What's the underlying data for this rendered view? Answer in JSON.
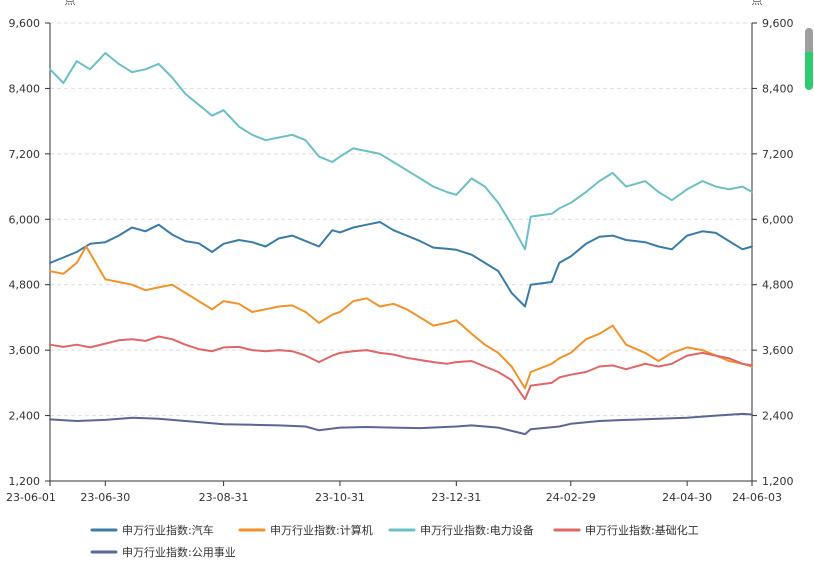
{
  "chart_data": {
    "type": "line",
    "unit_left": "点",
    "unit_right": "点",
    "ylim": [
      1200,
      9600
    ],
    "yticks": [
      1200,
      2400,
      3600,
      4800,
      6000,
      7200,
      8400,
      9600
    ],
    "ytick_labels": [
      "1,200",
      "2,400",
      "3,600",
      "4,800",
      "6,000",
      "7,200",
      "8,400",
      "9,600"
    ],
    "x_start": "2023-06-01",
    "x_end": "2024-06-03",
    "xticks": [
      {
        "date": "2023-06-01",
        "label": "23-06-01"
      },
      {
        "date": "2023-06-30",
        "label": "23-06-30"
      },
      {
        "date": "2023-08-31",
        "label": "23-08-31"
      },
      {
        "date": "2023-10-31",
        "label": "23-10-31"
      },
      {
        "date": "2023-12-31",
        "label": "23-12-31"
      },
      {
        "date": "2024-02-29",
        "label": "24-02-29"
      },
      {
        "date": "2024-04-30",
        "label": "24-04-30"
      },
      {
        "date": "2024-06-03",
        "label": "24-06-03"
      }
    ],
    "grid": "horizontal-dashed",
    "legend_position": "bottom",
    "series": [
      {
        "name": "申万行业指数:汽车",
        "color": "#3a7ca5",
        "points": [
          [
            "2023-06-01",
            5200
          ],
          [
            "2023-06-08",
            5300
          ],
          [
            "2023-06-15",
            5400
          ],
          [
            "2023-06-22",
            5550
          ],
          [
            "2023-06-30",
            5580
          ],
          [
            "2023-07-07",
            5700
          ],
          [
            "2023-07-14",
            5850
          ],
          [
            "2023-07-21",
            5780
          ],
          [
            "2023-07-28",
            5900
          ],
          [
            "2023-08-04",
            5720
          ],
          [
            "2023-08-11",
            5600
          ],
          [
            "2023-08-18",
            5560
          ],
          [
            "2023-08-25",
            5400
          ],
          [
            "2023-08-31",
            5550
          ],
          [
            "2023-09-08",
            5620
          ],
          [
            "2023-09-15",
            5580
          ],
          [
            "2023-09-22",
            5500
          ],
          [
            "2023-09-29",
            5650
          ],
          [
            "2023-10-06",
            5700
          ],
          [
            "2023-10-13",
            5600
          ],
          [
            "2023-10-20",
            5500
          ],
          [
            "2023-10-27",
            5800
          ],
          [
            "2023-10-31",
            5760
          ],
          [
            "2023-11-07",
            5850
          ],
          [
            "2023-11-14",
            5900
          ],
          [
            "2023-11-21",
            5950
          ],
          [
            "2023-11-28",
            5800
          ],
          [
            "2023-12-05",
            5700
          ],
          [
            "2023-12-12",
            5600
          ],
          [
            "2023-12-19",
            5480
          ],
          [
            "2023-12-26",
            5460
          ],
          [
            "2023-12-31",
            5440
          ],
          [
            "2024-01-08",
            5350
          ],
          [
            "2024-01-15",
            5200
          ],
          [
            "2024-01-22",
            5050
          ],
          [
            "2024-01-29",
            4650
          ],
          [
            "2024-02-05",
            4400
          ],
          [
            "2024-02-08",
            4800
          ],
          [
            "2024-02-19",
            4850
          ],
          [
            "2024-02-23",
            5200
          ],
          [
            "2024-02-29",
            5320
          ],
          [
            "2024-03-08",
            5550
          ],
          [
            "2024-03-15",
            5680
          ],
          [
            "2024-03-22",
            5700
          ],
          [
            "2024-03-29",
            5620
          ],
          [
            "2024-04-08",
            5580
          ],
          [
            "2024-04-15",
            5500
          ],
          [
            "2024-04-22",
            5450
          ],
          [
            "2024-04-30",
            5700
          ],
          [
            "2024-05-08",
            5780
          ],
          [
            "2024-05-15",
            5750
          ],
          [
            "2024-05-22",
            5600
          ],
          [
            "2024-05-29",
            5450
          ],
          [
            "2024-06-03",
            5500
          ]
        ]
      },
      {
        "name": "申万行业指数:计算机",
        "color": "#f0932b",
        "points": [
          [
            "2023-06-01",
            5050
          ],
          [
            "2023-06-08",
            5000
          ],
          [
            "2023-06-15",
            5200
          ],
          [
            "2023-06-20",
            5500
          ],
          [
            "2023-06-30",
            4900
          ],
          [
            "2023-07-07",
            4850
          ],
          [
            "2023-07-14",
            4800
          ],
          [
            "2023-07-21",
            4700
          ],
          [
            "2023-07-28",
            4750
          ],
          [
            "2023-08-04",
            4800
          ],
          [
            "2023-08-11",
            4650
          ],
          [
            "2023-08-18",
            4500
          ],
          [
            "2023-08-25",
            4350
          ],
          [
            "2023-08-31",
            4500
          ],
          [
            "2023-09-08",
            4450
          ],
          [
            "2023-09-15",
            4300
          ],
          [
            "2023-09-22",
            4350
          ],
          [
            "2023-09-29",
            4400
          ],
          [
            "2023-10-06",
            4420
          ],
          [
            "2023-10-13",
            4300
          ],
          [
            "2023-10-20",
            4100
          ],
          [
            "2023-10-27",
            4250
          ],
          [
            "2023-10-31",
            4300
          ],
          [
            "2023-11-07",
            4500
          ],
          [
            "2023-11-14",
            4550
          ],
          [
            "2023-11-21",
            4400
          ],
          [
            "2023-11-28",
            4450
          ],
          [
            "2023-12-05",
            4350
          ],
          [
            "2023-12-12",
            4200
          ],
          [
            "2023-12-19",
            4050
          ],
          [
            "2023-12-26",
            4100
          ],
          [
            "2023-12-31",
            4150
          ],
          [
            "2024-01-08",
            3900
          ],
          [
            "2024-01-15",
            3700
          ],
          [
            "2024-01-22",
            3550
          ],
          [
            "2024-01-29",
            3300
          ],
          [
            "2024-02-05",
            2900
          ],
          [
            "2024-02-08",
            3200
          ],
          [
            "2024-02-19",
            3350
          ],
          [
            "2024-02-23",
            3450
          ],
          [
            "2024-02-29",
            3550
          ],
          [
            "2024-03-08",
            3800
          ],
          [
            "2024-03-15",
            3900
          ],
          [
            "2024-03-22",
            4050
          ],
          [
            "2024-03-29",
            3700
          ],
          [
            "2024-04-08",
            3550
          ],
          [
            "2024-04-15",
            3400
          ],
          [
            "2024-04-22",
            3550
          ],
          [
            "2024-04-30",
            3650
          ],
          [
            "2024-05-08",
            3600
          ],
          [
            "2024-05-15",
            3500
          ],
          [
            "2024-05-22",
            3400
          ],
          [
            "2024-05-29",
            3350
          ],
          [
            "2024-06-03",
            3300
          ]
        ]
      },
      {
        "name": "申万行业指数:电力设备",
        "color": "#6cc0c4",
        "points": [
          [
            "2023-06-01",
            8750
          ],
          [
            "2023-06-08",
            8500
          ],
          [
            "2023-06-15",
            8900
          ],
          [
            "2023-06-22",
            8750
          ],
          [
            "2023-06-30",
            9050
          ],
          [
            "2023-07-07",
            8850
          ],
          [
            "2023-07-14",
            8700
          ],
          [
            "2023-07-21",
            8750
          ],
          [
            "2023-07-28",
            8850
          ],
          [
            "2023-08-04",
            8600
          ],
          [
            "2023-08-11",
            8300
          ],
          [
            "2023-08-18",
            8100
          ],
          [
            "2023-08-25",
            7900
          ],
          [
            "2023-08-31",
            8000
          ],
          [
            "2023-09-08",
            7700
          ],
          [
            "2023-09-15",
            7550
          ],
          [
            "2023-09-22",
            7450
          ],
          [
            "2023-09-29",
            7500
          ],
          [
            "2023-10-06",
            7550
          ],
          [
            "2023-10-13",
            7450
          ],
          [
            "2023-10-20",
            7150
          ],
          [
            "2023-10-27",
            7050
          ],
          [
            "2023-10-31",
            7150
          ],
          [
            "2023-11-07",
            7300
          ],
          [
            "2023-11-14",
            7250
          ],
          [
            "2023-11-21",
            7200
          ],
          [
            "2023-11-28",
            7050
          ],
          [
            "2023-12-05",
            6900
          ],
          [
            "2023-12-12",
            6750
          ],
          [
            "2023-12-19",
            6600
          ],
          [
            "2023-12-26",
            6500
          ],
          [
            "2023-12-31",
            6450
          ],
          [
            "2024-01-08",
            6750
          ],
          [
            "2024-01-15",
            6600
          ],
          [
            "2024-01-22",
            6300
          ],
          [
            "2024-01-29",
            5900
          ],
          [
            "2024-02-05",
            5450
          ],
          [
            "2024-02-08",
            6050
          ],
          [
            "2024-02-19",
            6100
          ],
          [
            "2024-02-23",
            6200
          ],
          [
            "2024-02-29",
            6300
          ],
          [
            "2024-03-08",
            6500
          ],
          [
            "2024-03-15",
            6700
          ],
          [
            "2024-03-22",
            6850
          ],
          [
            "2024-03-29",
            6600
          ],
          [
            "2024-04-08",
            6700
          ],
          [
            "2024-04-15",
            6500
          ],
          [
            "2024-04-22",
            6350
          ],
          [
            "2024-04-30",
            6550
          ],
          [
            "2024-05-08",
            6700
          ],
          [
            "2024-05-15",
            6600
          ],
          [
            "2024-05-22",
            6550
          ],
          [
            "2024-05-29",
            6600
          ],
          [
            "2024-06-03",
            6500
          ]
        ]
      },
      {
        "name": "申万行业指数:基础化工",
        "color": "#e06666",
        "points": [
          [
            "2023-06-01",
            3700
          ],
          [
            "2023-06-08",
            3660
          ],
          [
            "2023-06-15",
            3700
          ],
          [
            "2023-06-22",
            3650
          ],
          [
            "2023-06-30",
            3720
          ],
          [
            "2023-07-07",
            3780
          ],
          [
            "2023-07-14",
            3800
          ],
          [
            "2023-07-21",
            3770
          ],
          [
            "2023-07-28",
            3850
          ],
          [
            "2023-08-04",
            3800
          ],
          [
            "2023-08-11",
            3700
          ],
          [
            "2023-08-18",
            3620
          ],
          [
            "2023-08-25",
            3580
          ],
          [
            "2023-08-31",
            3650
          ],
          [
            "2023-09-08",
            3660
          ],
          [
            "2023-09-15",
            3600
          ],
          [
            "2023-09-22",
            3580
          ],
          [
            "2023-09-29",
            3600
          ],
          [
            "2023-10-06",
            3580
          ],
          [
            "2023-10-13",
            3500
          ],
          [
            "2023-10-20",
            3380
          ],
          [
            "2023-10-27",
            3500
          ],
          [
            "2023-10-31",
            3550
          ],
          [
            "2023-11-07",
            3580
          ],
          [
            "2023-11-14",
            3600
          ],
          [
            "2023-11-21",
            3550
          ],
          [
            "2023-11-28",
            3520
          ],
          [
            "2023-12-05",
            3460
          ],
          [
            "2023-12-12",
            3420
          ],
          [
            "2023-12-19",
            3380
          ],
          [
            "2023-12-26",
            3350
          ],
          [
            "2023-12-31",
            3380
          ],
          [
            "2024-01-08",
            3400
          ],
          [
            "2024-01-15",
            3300
          ],
          [
            "2024-01-22",
            3200
          ],
          [
            "2024-01-29",
            3050
          ],
          [
            "2024-02-05",
            2700
          ],
          [
            "2024-02-08",
            2950
          ],
          [
            "2024-02-19",
            3000
          ],
          [
            "2024-02-23",
            3100
          ],
          [
            "2024-02-29",
            3150
          ],
          [
            "2024-03-08",
            3200
          ],
          [
            "2024-03-15",
            3300
          ],
          [
            "2024-03-22",
            3320
          ],
          [
            "2024-03-29",
            3250
          ],
          [
            "2024-04-08",
            3350
          ],
          [
            "2024-04-15",
            3300
          ],
          [
            "2024-04-22",
            3350
          ],
          [
            "2024-04-30",
            3500
          ],
          [
            "2024-05-08",
            3550
          ],
          [
            "2024-05-15",
            3500
          ],
          [
            "2024-05-22",
            3450
          ],
          [
            "2024-05-29",
            3350
          ],
          [
            "2024-06-03",
            3320
          ]
        ]
      },
      {
        "name": "申万行业指数:公用事业",
        "color": "#5a6694",
        "points": [
          [
            "2023-06-01",
            2330
          ],
          [
            "2023-06-15",
            2300
          ],
          [
            "2023-06-30",
            2320
          ],
          [
            "2023-07-14",
            2360
          ],
          [
            "2023-07-28",
            2340
          ],
          [
            "2023-08-11",
            2300
          ],
          [
            "2023-08-25",
            2260
          ],
          [
            "2023-08-31",
            2240
          ],
          [
            "2023-09-15",
            2230
          ],
          [
            "2023-09-29",
            2220
          ],
          [
            "2023-10-13",
            2200
          ],
          [
            "2023-10-20",
            2130
          ],
          [
            "2023-10-31",
            2180
          ],
          [
            "2023-11-14",
            2190
          ],
          [
            "2023-11-28",
            2180
          ],
          [
            "2023-12-12",
            2170
          ],
          [
            "2023-12-31",
            2200
          ],
          [
            "2024-01-08",
            2220
          ],
          [
            "2024-01-22",
            2180
          ],
          [
            "2024-02-05",
            2060
          ],
          [
            "2024-02-08",
            2150
          ],
          [
            "2024-02-23",
            2200
          ],
          [
            "2024-02-29",
            2250
          ],
          [
            "2024-03-15",
            2300
          ],
          [
            "2024-03-29",
            2320
          ],
          [
            "2024-04-15",
            2340
          ],
          [
            "2024-04-30",
            2360
          ],
          [
            "2024-05-15",
            2400
          ],
          [
            "2024-05-29",
            2430
          ],
          [
            "2024-06-03",
            2420
          ]
        ]
      }
    ]
  }
}
